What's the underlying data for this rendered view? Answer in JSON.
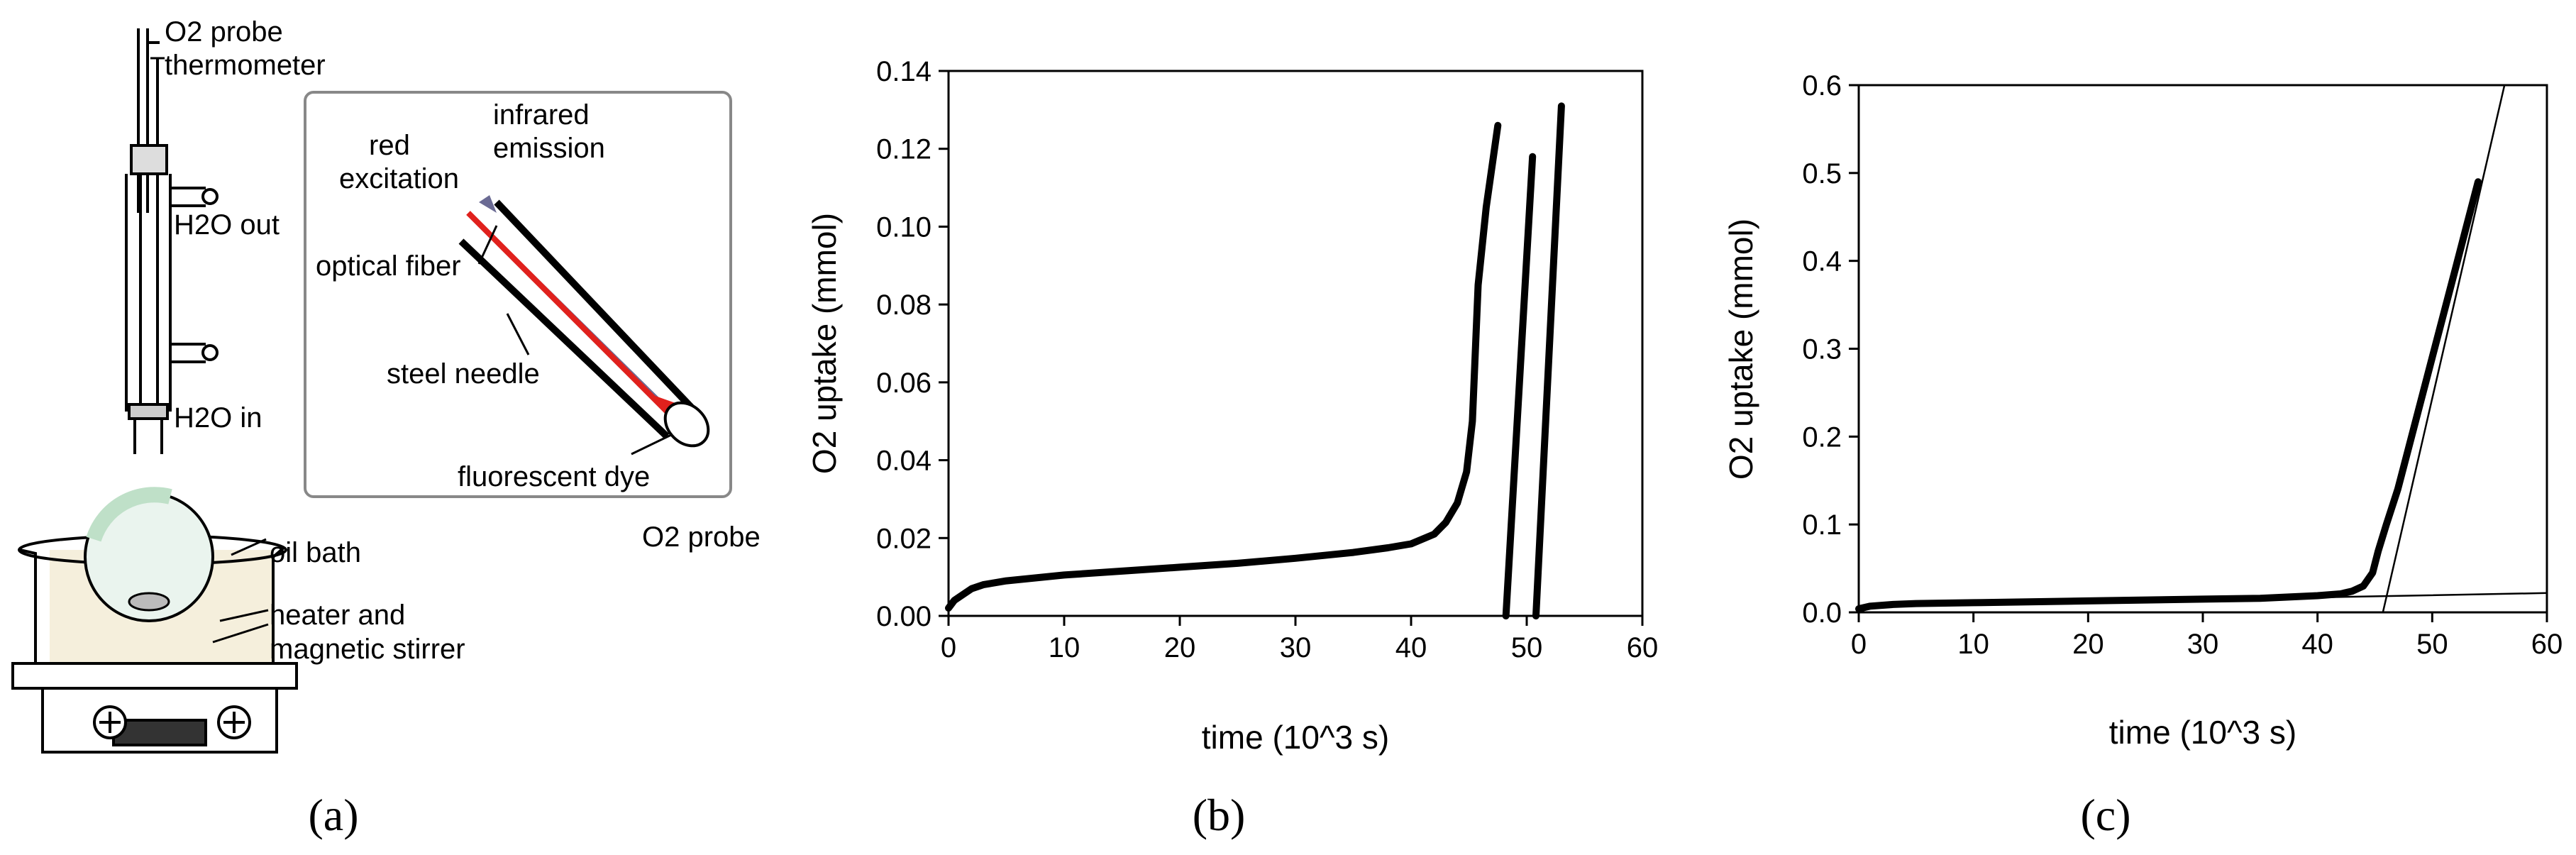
{
  "panel_a": {
    "letter": "(a)",
    "labels": {
      "o2_probe_top": "O2 probe",
      "thermometer": "thermometer",
      "h2o_out": "H2O out",
      "h2o_in": "H2O in",
      "oil_bath": "oil bath",
      "heater_line1": "heater and",
      "heater_line2": "magnetic stirrer",
      "inset_infrared_line1": "infrared",
      "inset_infrared_line2": "emission",
      "inset_red_line1": "red",
      "inset_red_line2": "excitation",
      "inset_optical_fiber": "optical fiber",
      "inset_steel_needle": "steel needle",
      "inset_fluorescent_dye": "fluorescent dye",
      "inset_caption": "O2 probe"
    },
    "colors": {
      "excitation": "#e0211d",
      "emission": "#6b6b94",
      "bath": "#f5efdc",
      "flask_tint": "#bfe0c8"
    }
  },
  "chart_data": [
    {
      "panel": "(b)",
      "type": "line",
      "xlabel": "time (10^3 s)",
      "ylabel": "O2 uptake (mmol)",
      "xlim": [
        0,
        60
      ],
      "ylim": [
        0,
        0.14
      ],
      "xticks": [
        "0",
        "10",
        "20",
        "30",
        "40",
        "50",
        "60"
      ],
      "yticks": [
        "0.00",
        "0.02",
        "0.04",
        "0.06",
        "0.08",
        "0.10",
        "0.12",
        "0.14"
      ],
      "grid": false,
      "legend": "none",
      "series": [
        {
          "x": [
            0,
            0.5,
            1,
            2,
            3,
            5,
            10,
            15,
            20,
            25,
            30,
            35,
            38,
            40,
            42,
            43,
            44,
            44.8,
            45.3,
            45.8,
            46.5,
            47.5
          ],
          "y": [
            0.002,
            0.004,
            0.005,
            0.007,
            0.008,
            0.009,
            0.0105,
            0.0115,
            0.0125,
            0.0135,
            0.0148,
            0.0163,
            0.0175,
            0.0185,
            0.021,
            0.024,
            0.029,
            0.037,
            0.05,
            0.085,
            0.105,
            0.126
          ]
        },
        {
          "x": [
            48.2,
            50.5
          ],
          "y": [
            0.0,
            0.118
          ]
        },
        {
          "x": [
            50.8,
            53.0
          ],
          "y": [
            0.0,
            0.131
          ]
        }
      ]
    },
    {
      "panel": "(c)",
      "type": "line",
      "xlabel": "time (10^3 s)",
      "ylabel": "O2 uptake (mmol)",
      "xlim": [
        0,
        60
      ],
      "ylim": [
        0,
        0.6
      ],
      "xticks": [
        "0",
        "10",
        "20",
        "30",
        "40",
        "50",
        "60"
      ],
      "yticks": [
        "0.0",
        "0.1",
        "0.2",
        "0.3",
        "0.4",
        "0.5",
        "0.6"
      ],
      "grid": false,
      "legend": "none",
      "series": [
        {
          "x": [
            0,
            1,
            3,
            5,
            10,
            20,
            30,
            35,
            40,
            42,
            43,
            44,
            44.8,
            45.3,
            46,
            47,
            48,
            50,
            52,
            53,
            54
          ],
          "y": [
            0.004,
            0.007,
            0.009,
            0.01,
            0.011,
            0.013,
            0.015,
            0.016,
            0.019,
            0.021,
            0.024,
            0.03,
            0.045,
            0.07,
            0.1,
            0.14,
            0.19,
            0.29,
            0.39,
            0.44,
            0.49
          ]
        },
        {
          "x": [
            0,
            60
          ],
          "y": [
            0.007,
            0.022
          ],
          "style": "thin"
        },
        {
          "x": [
            45.7,
            56.3
          ],
          "y": [
            0.0,
            0.6
          ],
          "style": "thin"
        }
      ]
    }
  ]
}
